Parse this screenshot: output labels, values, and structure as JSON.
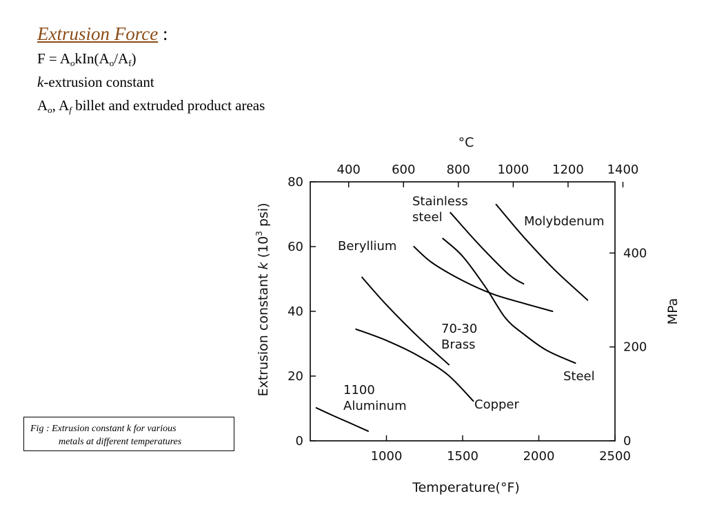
{
  "heading": {
    "title": "Extrusion Force",
    "colon": " :",
    "formula": {
      "lhs": "F = A",
      "sub_o": "o",
      "mid": "kIn(A",
      "sub_o2": "o",
      "slash": "/A",
      "sub_f": "f",
      "close": ")"
    },
    "k_symbol": "k",
    "k_text": "-extrusion constant",
    "areas": {
      "a1": "A",
      "a1_sub": "o",
      "sep": ", A",
      "a2_sub": "f",
      "text": " billet and extruded product areas"
    }
  },
  "caption": {
    "line1": "Fig : Extrusion constant k for various",
    "line2": "metals at different temperatures"
  },
  "colors": {
    "title": "#8a4b16",
    "curve": "#000000"
  },
  "chart_data": {
    "type": "line",
    "xlabel": "Temperature(°F)",
    "top_axis_label": "°C",
    "ylabel_left": {
      "pre": "Extrusion  constant  ",
      "k": "k",
      "paren": "  (10",
      "exp": "3",
      "unit": "  psi)"
    },
    "ylabel_right": "MPa",
    "x_range_F": [
      500,
      2500
    ],
    "y_range_ksi": [
      0,
      80
    ],
    "x_ticks_F": [
      "1000",
      "1500",
      "2000",
      "2500"
    ],
    "top_ticks_C": [
      "400",
      "600",
      "800",
      "1000",
      "1200",
      "1400"
    ],
    "y_ticks_ksi": [
      "0",
      "20",
      "40",
      "60",
      "80"
    ],
    "right_ticks_MPa": [
      "0",
      "200",
      "400"
    ],
    "grid": false,
    "series": [
      {
        "name": "Aluminum",
        "label": [
          "1100",
          "Aluminum"
        ],
        "points": [
          [
            540,
            10.2
          ],
          [
            640,
            8
          ],
          [
            760,
            5.5
          ],
          [
            880,
            3
          ]
        ]
      },
      {
        "name": "Copper",
        "label": [
          "Copper"
        ],
        "points": [
          [
            800,
            34.5
          ],
          [
            1000,
            31
          ],
          [
            1200,
            26.5
          ],
          [
            1400,
            20.5
          ],
          [
            1570,
            12.3
          ]
        ]
      },
      {
        "name": "70-30 Brass",
        "label": [
          "70-30",
          "Brass"
        ],
        "points": [
          [
            840,
            50.5
          ],
          [
            1000,
            42
          ],
          [
            1200,
            32.5
          ],
          [
            1410,
            23.5
          ]
        ]
      },
      {
        "name": "Beryllium",
        "label": [
          "Beryllium"
        ],
        "points": [
          [
            1180,
            60
          ],
          [
            1300,
            55
          ],
          [
            1500,
            49.5
          ],
          [
            1700,
            45.3
          ],
          [
            1900,
            42.5
          ],
          [
            2090,
            40
          ]
        ]
      },
      {
        "name": "Steel",
        "label": [
          "Steel"
        ],
        "points": [
          [
            1370,
            62.5
          ],
          [
            1500,
            57
          ],
          [
            1650,
            47.5
          ],
          [
            1780,
            38
          ],
          [
            1900,
            33
          ],
          [
            2050,
            28
          ],
          [
            2240,
            24
          ]
        ]
      },
      {
        "name": "Stainless steel",
        "label": [
          "Stainless",
          "steel"
        ],
        "points": [
          [
            1420,
            70.5
          ],
          [
            1600,
            61
          ],
          [
            1800,
            51.5
          ],
          [
            1900,
            48.5
          ]
        ]
      },
      {
        "name": "Molybdenum",
        "label": [
          "Molybdenum"
        ],
        "points": [
          [
            1720,
            73
          ],
          [
            1900,
            63
          ],
          [
            2100,
            53
          ],
          [
            2320,
            43.5
          ]
        ]
      }
    ]
  }
}
